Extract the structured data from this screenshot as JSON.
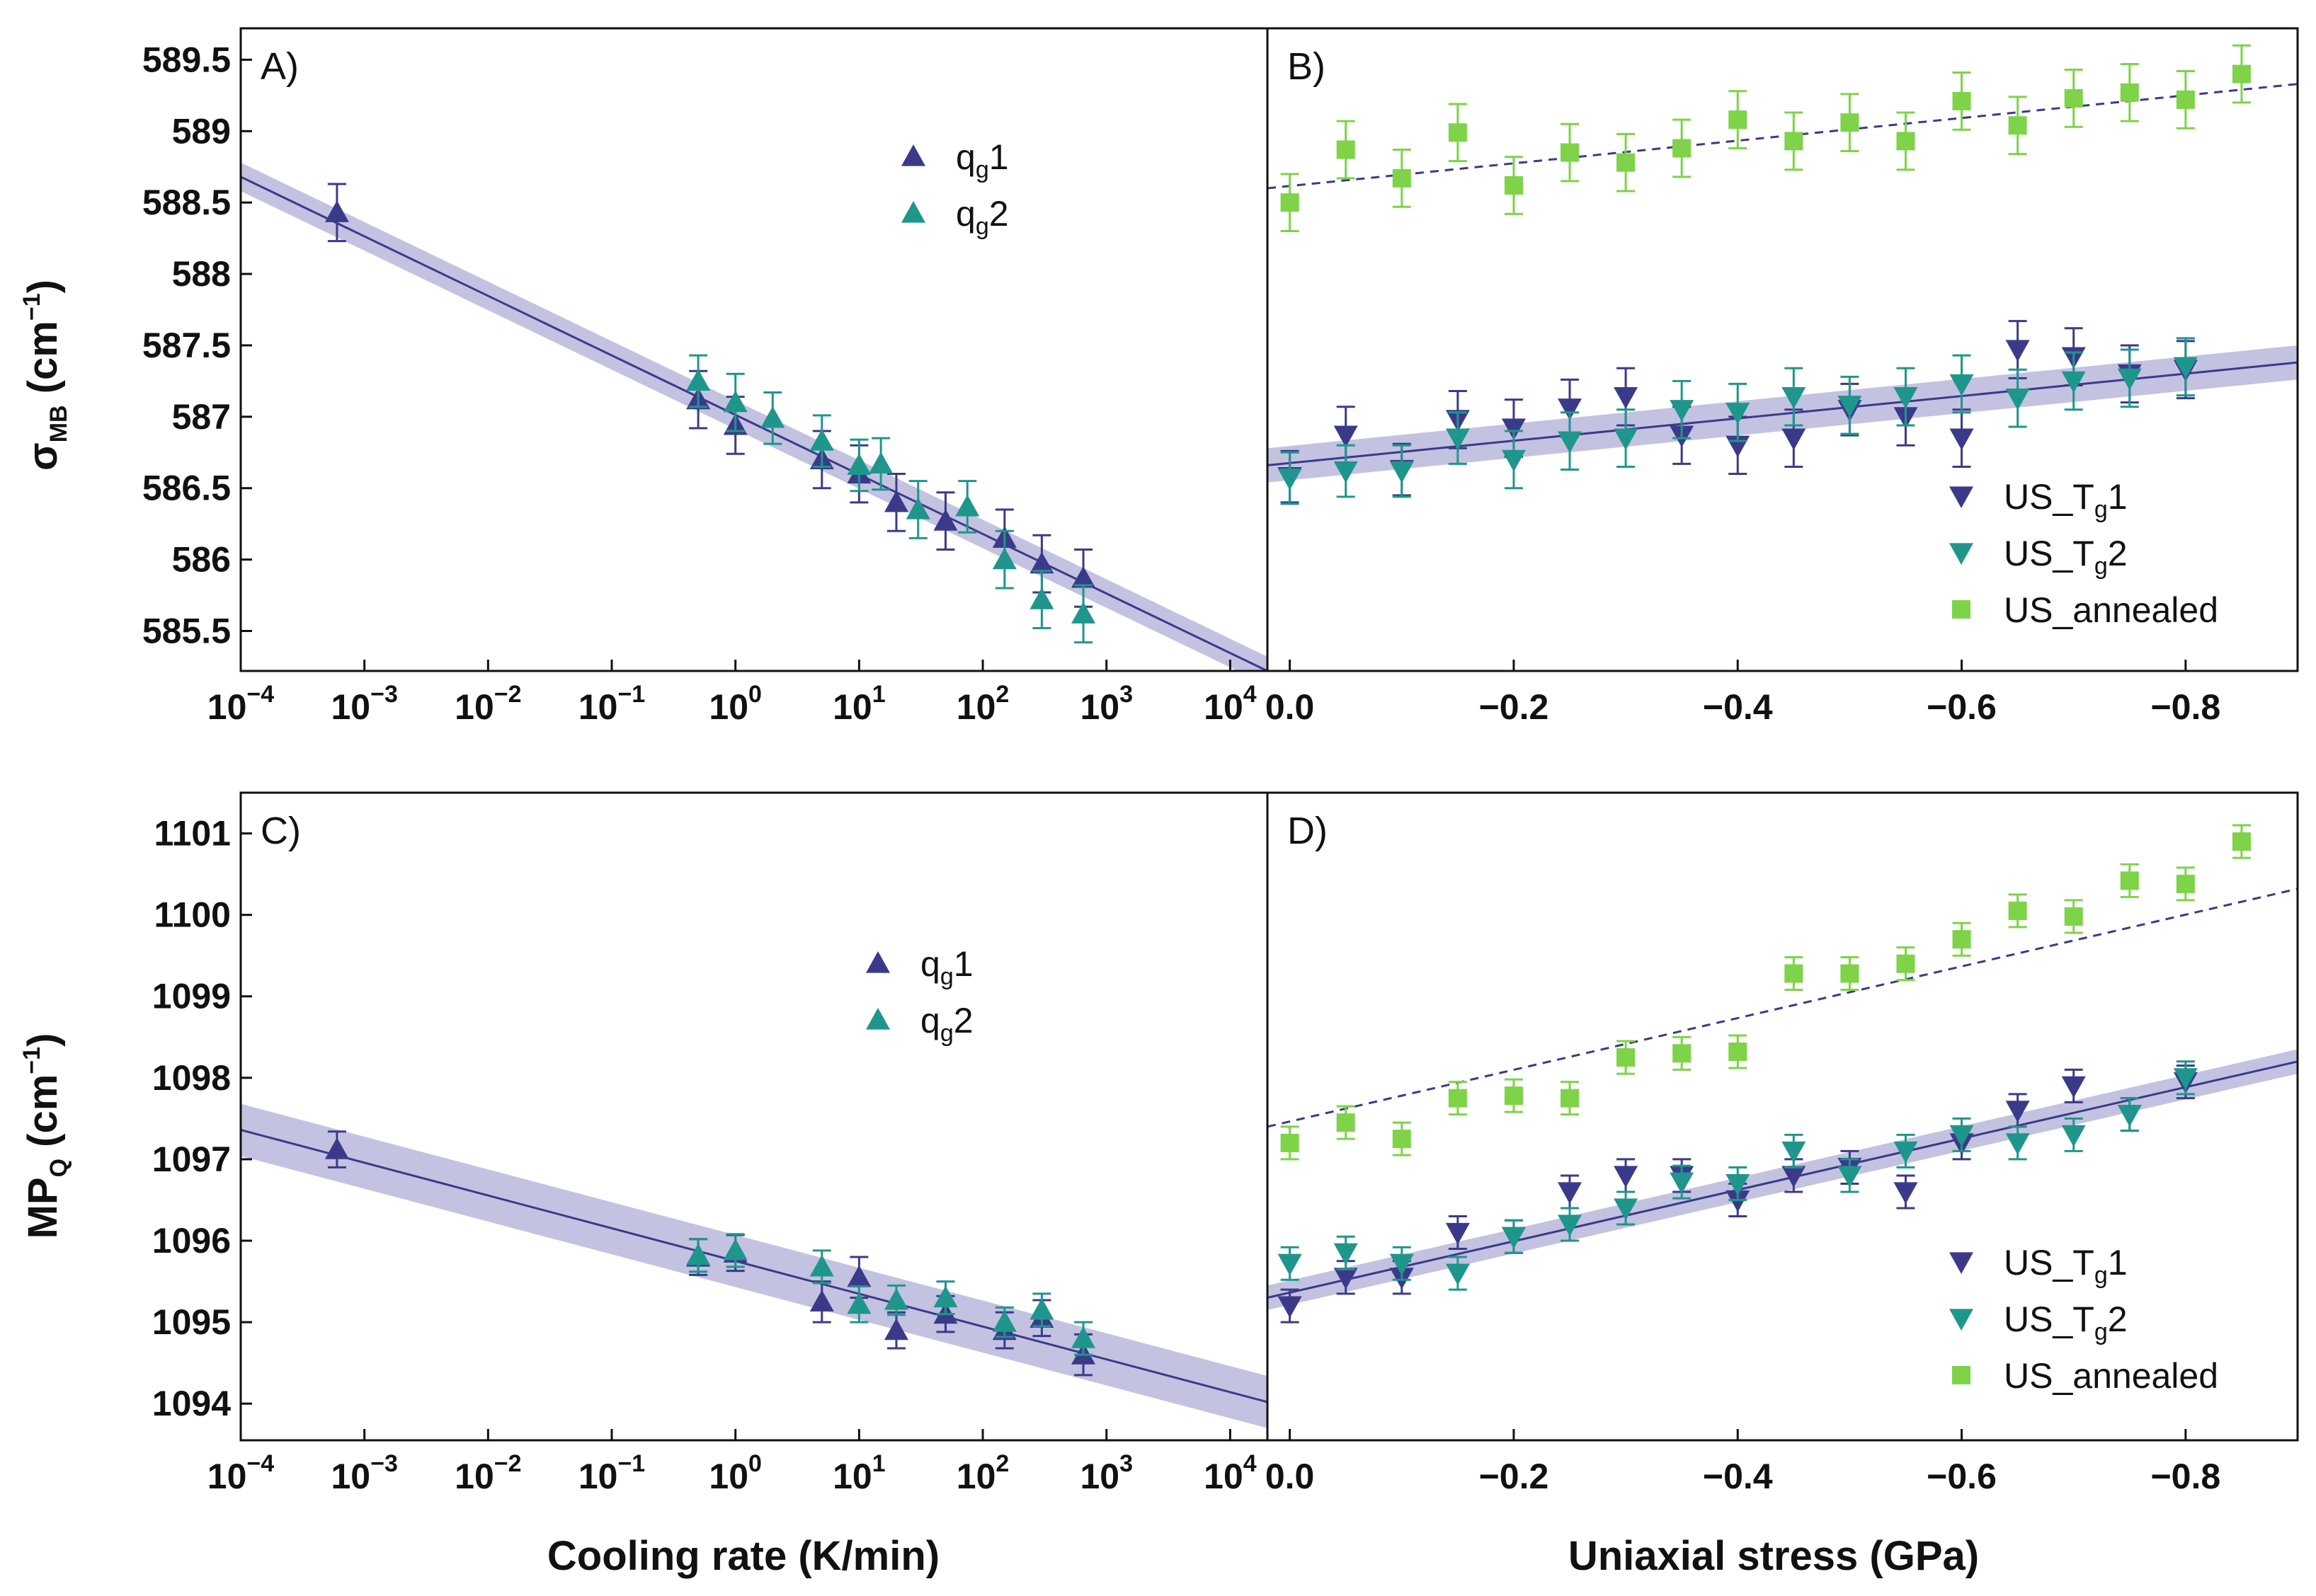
{
  "colors": {
    "tg1": "#3b3a8a",
    "tg2": "#1f968b",
    "annealed": "#7ed348",
    "fit": "#3b3a8a",
    "band": "#b9b7dc"
  },
  "labels": {
    "y_top": "σMB (cm−1)",
    "y_bottom": "MPQ (cm−1)",
    "x_left": "Cooling rate (K/min)",
    "x_right": "Uniaxial stress (GPa)"
  },
  "chart_data": [
    {
      "panel": "A)",
      "type": "scatter",
      "xscale": "log",
      "xlim": [
        0.0001,
        20000
      ],
      "ylim": [
        585.22,
        589.72
      ],
      "ylabel": "σMB (cm−1)",
      "xticks": [
        "10^-4",
        "10^-3",
        "10^-2",
        "10^-1",
        "10^0",
        "10^1",
        "10^2",
        "10^3",
        "10^4"
      ],
      "yticks": [
        585.5,
        586.0,
        586.5,
        587.0,
        587.5,
        588.0,
        588.5,
        589.0,
        589.5
      ],
      "legend": [
        "qg1",
        "qg2"
      ],
      "series": [
        {
          "name": "qg1",
          "marker": "triangle-up",
          "color": "tg1",
          "points": [
            [
              0.0006,
              588.43,
              0.2
            ],
            [
              0.5,
              587.12,
              0.2
            ],
            [
              1,
              586.94,
              0.2
            ],
            [
              5,
              586.7,
              0.2
            ],
            [
              10,
              586.6,
              0.2
            ],
            [
              20,
              586.4,
              0.2
            ],
            [
              50,
              586.27,
              0.2
            ],
            [
              150,
              586.15,
              0.2
            ],
            [
              300,
              585.97,
              0.2
            ],
            [
              650,
              585.87,
              0.2
            ]
          ]
        },
        {
          "name": "qg2",
          "marker": "triangle-up",
          "color": "tg2",
          "points": [
            [
              0.5,
              587.25,
              0.18
            ],
            [
              1,
              587.1,
              0.2
            ],
            [
              2,
              586.99,
              0.18
            ],
            [
              5,
              586.83,
              0.18
            ],
            [
              10,
              586.66,
              0.18
            ],
            [
              15,
              586.67,
              0.18
            ],
            [
              30,
              586.35,
              0.2
            ],
            [
              75,
              586.37,
              0.18
            ],
            [
              150,
              586.0,
              0.2
            ],
            [
              300,
              585.72,
              0.2
            ],
            [
              650,
              585.62,
              0.2
            ]
          ]
        }
      ],
      "fit": {
        "x": [
          0.0001,
          20000
        ],
        "y": [
          588.68,
          585.22
        ],
        "band": 0.1,
        "style": "solid"
      }
    },
    {
      "panel": "B)",
      "type": "scatter",
      "xscale": "linear",
      "xlim": [
        0.02,
        -0.9
      ],
      "ylim": [
        585.22,
        589.72
      ],
      "xticks": [
        0.0,
        -0.2,
        -0.4,
        -0.6,
        -0.8
      ],
      "legend": [
        "US_Tg1",
        "US_Tg2",
        "US_annealed"
      ],
      "series": [
        {
          "name": "US_Tg1",
          "marker": "triangle-down",
          "color": "tg1",
          "points": [
            [
              0,
              586.58,
              0.18
            ],
            [
              -0.05,
              586.87,
              0.2
            ],
            [
              -0.1,
              586.63,
              0.18
            ],
            [
              -0.15,
              586.98,
              0.2
            ],
            [
              -0.2,
              586.92,
              0.2
            ],
            [
              -0.25,
              587.06,
              0.2
            ],
            [
              -0.3,
              587.14,
              0.2
            ],
            [
              -0.35,
              586.87,
              0.2
            ],
            [
              -0.4,
              586.8,
              0.2
            ],
            [
              -0.45,
              586.85,
              0.2
            ],
            [
              -0.5,
              587.05,
              0.18
            ],
            [
              -0.55,
              587.0,
              0.2
            ],
            [
              -0.6,
              586.85,
              0.2
            ],
            [
              -0.65,
              587.47,
              0.2
            ],
            [
              -0.7,
              587.42,
              0.2
            ],
            [
              -0.75,
              587.3,
              0.2
            ],
            [
              -0.8,
              587.33,
              0.2
            ]
          ]
        },
        {
          "name": "US_Tg2",
          "marker": "triangle-down",
          "color": "tg2",
          "points": [
            [
              0,
              586.57,
              0.18
            ],
            [
              -0.05,
              586.62,
              0.18
            ],
            [
              -0.1,
              586.62,
              0.18
            ],
            [
              -0.15,
              586.85,
              0.18
            ],
            [
              -0.2,
              586.7,
              0.2
            ],
            [
              -0.25,
              586.83,
              0.2
            ],
            [
              -0.3,
              586.85,
              0.2
            ],
            [
              -0.35,
              587.05,
              0.2
            ],
            [
              -0.4,
              587.03,
              0.2
            ],
            [
              -0.45,
              587.14,
              0.2
            ],
            [
              -0.5,
              587.08,
              0.2
            ],
            [
              -0.55,
              587.14,
              0.2
            ],
            [
              -0.6,
              587.23,
              0.2
            ],
            [
              -0.65,
              587.13,
              0.2
            ],
            [
              -0.7,
              587.25,
              0.2
            ],
            [
              -0.75,
              587.27,
              0.2
            ],
            [
              -0.8,
              587.35,
              0.2
            ]
          ]
        },
        {
          "name": "US_annealed",
          "marker": "square",
          "color": "annealed",
          "points": [
            [
              0,
              588.5,
              0.2
            ],
            [
              -0.05,
              588.87,
              0.2
            ],
            [
              -0.1,
              588.67,
              0.2
            ],
            [
              -0.15,
              588.99,
              0.2
            ],
            [
              -0.2,
              588.62,
              0.2
            ],
            [
              -0.25,
              588.85,
              0.2
            ],
            [
              -0.3,
              588.78,
              0.2
            ],
            [
              -0.35,
              588.88,
              0.2
            ],
            [
              -0.4,
              589.08,
              0.2
            ],
            [
              -0.45,
              588.93,
              0.2
            ],
            [
              -0.5,
              589.06,
              0.2
            ],
            [
              -0.55,
              588.93,
              0.2
            ],
            [
              -0.6,
              589.21,
              0.2
            ],
            [
              -0.65,
              589.04,
              0.2
            ],
            [
              -0.7,
              589.23,
              0.2
            ],
            [
              -0.75,
              589.27,
              0.2
            ],
            [
              -0.8,
              589.22,
              0.2
            ],
            [
              -0.85,
              589.4,
              0.2
            ]
          ]
        }
      ],
      "fit": {
        "x": [
          0.02,
          -0.9
        ],
        "y": [
          586.66,
          587.38
        ],
        "band": 0.12,
        "style": "solid"
      },
      "fit2": {
        "x": [
          0.02,
          -0.9
        ],
        "y": [
          588.6,
          589.33
        ],
        "style": "dashed"
      }
    },
    {
      "panel": "C)",
      "type": "scatter",
      "xscale": "log",
      "xlim": [
        0.0001,
        20000
      ],
      "ylim": [
        1093.55,
        1101.5
      ],
      "ylabel": "MPQ (cm−1)",
      "xticks": [
        "10^-4",
        "10^-3",
        "10^-2",
        "10^-1",
        "10^0",
        "10^1",
        "10^2",
        "10^3",
        "10^4"
      ],
      "yticks": [
        1094,
        1095,
        1096,
        1097,
        1098,
        1099,
        1100,
        1101
      ],
      "legend": [
        "qg1",
        "qg2"
      ],
      "series": [
        {
          "name": "qg1",
          "marker": "triangle-up",
          "color": "tg1",
          "points": [
            [
              0.0006,
              1097.12,
              0.22
            ],
            [
              0.5,
              1095.8,
              0.22
            ],
            [
              1,
              1095.85,
              0.22
            ],
            [
              5,
              1095.25,
              0.25
            ],
            [
              10,
              1095.55,
              0.25
            ],
            [
              20,
              1094.9,
              0.22
            ],
            [
              50,
              1095.1,
              0.22
            ],
            [
              150,
              1094.9,
              0.22
            ],
            [
              300,
              1095.05,
              0.22
            ],
            [
              650,
              1094.6,
              0.25
            ]
          ]
        },
        {
          "name": "qg2",
          "marker": "triangle-up",
          "color": "tg2",
          "points": [
            [
              0.5,
              1095.82,
              0.2
            ],
            [
              1,
              1095.88,
              0.2
            ],
            [
              5,
              1095.68,
              0.2
            ],
            [
              10,
              1095.22,
              0.22
            ],
            [
              20,
              1095.27,
              0.18
            ],
            [
              50,
              1095.3,
              0.2
            ],
            [
              150,
              1095.0,
              0.18
            ],
            [
              300,
              1095.15,
              0.2
            ],
            [
              650,
              1094.8,
              0.2
            ]
          ]
        }
      ],
      "fit": {
        "x": [
          0.0001,
          20000
        ],
        "y": [
          1097.36,
          1094.02
        ],
        "band": 0.32,
        "style": "solid"
      }
    },
    {
      "panel": "D)",
      "type": "scatter",
      "xscale": "linear",
      "xlim": [
        0.02,
        -0.9
      ],
      "ylim": [
        1093.55,
        1101.5
      ],
      "xticks": [
        0.0,
        -0.2,
        -0.4,
        -0.6,
        -0.8
      ],
      "legend": [
        "US_Tg1",
        "US_Tg2",
        "US_annealed"
      ],
      "series": [
        {
          "name": "US_Tg1",
          "marker": "triangle-down",
          "color": "tg1",
          "points": [
            [
              0,
              1095.2,
              0.2
            ],
            [
              -0.05,
              1095.55,
              0.2
            ],
            [
              -0.1,
              1095.55,
              0.2
            ],
            [
              -0.15,
              1096.1,
              0.2
            ],
            [
              -0.2,
              1096.05,
              0.2
            ],
            [
              -0.25,
              1096.6,
              0.2
            ],
            [
              -0.3,
              1096.8,
              0.2
            ],
            [
              -0.35,
              1096.8,
              0.2
            ],
            [
              -0.4,
              1096.5,
              0.2
            ],
            [
              -0.45,
              1096.8,
              0.2
            ],
            [
              -0.5,
              1096.9,
              0.2
            ],
            [
              -0.55,
              1096.6,
              0.2
            ],
            [
              -0.6,
              1097.2,
              0.2
            ],
            [
              -0.65,
              1097.6,
              0.2
            ],
            [
              -0.7,
              1097.9,
              0.2
            ],
            [
              -0.75,
              1097.55,
              0.2
            ],
            [
              -0.8,
              1097.95,
              0.2
            ]
          ]
        },
        {
          "name": "US_Tg2",
          "marker": "triangle-down",
          "color": "tg2",
          "points": [
            [
              0,
              1095.72,
              0.2
            ],
            [
              -0.05,
              1095.85,
              0.2
            ],
            [
              -0.1,
              1095.72,
              0.2
            ],
            [
              -0.15,
              1095.6,
              0.2
            ],
            [
              -0.2,
              1096.05,
              0.2
            ],
            [
              -0.25,
              1096.2,
              0.2
            ],
            [
              -0.3,
              1096.4,
              0.2
            ],
            [
              -0.35,
              1096.72,
              0.2
            ],
            [
              -0.4,
              1096.7,
              0.2
            ],
            [
              -0.45,
              1097.1,
              0.2
            ],
            [
              -0.5,
              1096.8,
              0.2
            ],
            [
              -0.55,
              1097.1,
              0.2
            ],
            [
              -0.6,
              1097.3,
              0.2
            ],
            [
              -0.65,
              1097.2,
              0.2
            ],
            [
              -0.7,
              1097.3,
              0.2
            ],
            [
              -0.75,
              1097.55,
              0.2
            ],
            [
              -0.8,
              1098.0,
              0.2
            ]
          ]
        },
        {
          "name": "US_annealed",
          "marker": "square",
          "color": "annealed",
          "points": [
            [
              0,
              1097.2,
              0.2
            ],
            [
              -0.05,
              1097.45,
              0.2
            ],
            [
              -0.1,
              1097.25,
              0.2
            ],
            [
              -0.15,
              1097.75,
              0.2
            ],
            [
              -0.2,
              1097.78,
              0.2
            ],
            [
              -0.25,
              1097.75,
              0.2
            ],
            [
              -0.3,
              1098.25,
              0.2
            ],
            [
              -0.35,
              1098.3,
              0.2
            ],
            [
              -0.4,
              1098.32,
              0.2
            ],
            [
              -0.45,
              1099.28,
              0.2
            ],
            [
              -0.5,
              1099.28,
              0.2
            ],
            [
              -0.55,
              1099.4,
              0.2
            ],
            [
              -0.6,
              1099.7,
              0.2
            ],
            [
              -0.65,
              1100.05,
              0.2
            ],
            [
              -0.7,
              1099.98,
              0.2
            ],
            [
              -0.75,
              1100.42,
              0.2
            ],
            [
              -0.8,
              1100.38,
              0.2
            ],
            [
              -0.85,
              1100.9,
              0.2
            ]
          ]
        }
      ],
      "fit": {
        "x": [
          0.02,
          -0.9
        ],
        "y": [
          1095.3,
          1098.2
        ],
        "band": 0.15,
        "style": "solid"
      },
      "fit2": {
        "x": [
          0.02,
          -0.9
        ],
        "y": [
          1097.4,
          1100.32
        ],
        "style": "dashed"
      }
    }
  ]
}
